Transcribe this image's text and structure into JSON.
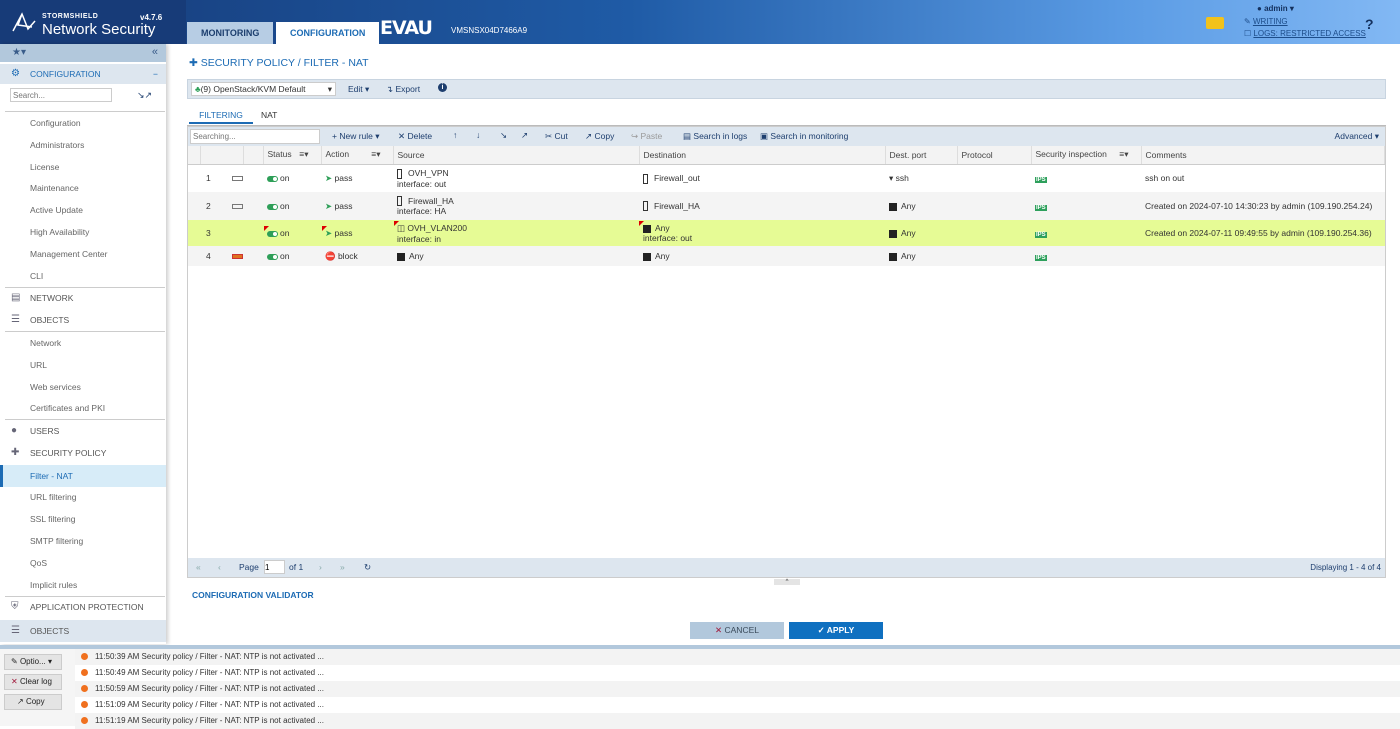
{
  "header": {
    "brand_small": "STORMSHIELD",
    "brand": "Network Security",
    "version": "v4.7.6",
    "tabs": [
      "MONITORING",
      "CONFIGURATION"
    ],
    "firewall_name": "EVAU",
    "serial": "VMSNSX04D7466A9",
    "user": "admin",
    "writing": "WRITING",
    "logs_access": "LOGS: RESTRICTED ACCESS",
    "help": "?"
  },
  "sidebar": {
    "config_title": "CONFIGURATION",
    "search_placeholder": "Search...",
    "config_items": [
      "Configuration",
      "Administrators",
      "License",
      "Maintenance",
      "Active Update",
      "High Availability",
      "Management Center",
      "CLI"
    ],
    "network": "NETWORK",
    "objects": "OBJECTS",
    "object_items": [
      "Network",
      "URL",
      "Web services",
      "Certificates and PKI"
    ],
    "users": "USERS",
    "security_policy": "SECURITY POLICY",
    "policy_items": [
      "Filter - NAT",
      "URL filtering",
      "SSL filtering",
      "SMTP filtering",
      "QoS",
      "Implicit rules"
    ],
    "app_protection": "APPLICATION PROTECTION",
    "objects_bottom": "OBJECTS"
  },
  "main": {
    "title": "SECURITY POLICY / FILTER - NAT",
    "policy_select": "(9) OpenStack/KVM Default",
    "edit": "Edit",
    "export": "Export",
    "tabs": [
      "FILTERING",
      "NAT"
    ],
    "toolbar": {
      "search_placeholder": "Searching...",
      "new_rule": "New rule",
      "delete": "Delete",
      "cut": "Cut",
      "copy": "Copy",
      "paste": "Paste",
      "search_logs": "Search in logs",
      "search_monitoring": "Search in monitoring",
      "advanced": "Advanced"
    },
    "columns": [
      "Status",
      "Action",
      "Source",
      "Destination",
      "Dest. port",
      "Protocol",
      "Security inspection",
      "Comments"
    ],
    "rows": [
      {
        "num": "1",
        "status": "on",
        "action": "pass",
        "source": "OVH_VPN",
        "source_if": "interface: out",
        "dest": "Firewall_out",
        "dest_if": "",
        "port": "ssh",
        "inspection": "IPS",
        "comment": "ssh on out"
      },
      {
        "num": "2",
        "status": "on",
        "action": "pass",
        "source": "Firewall_HA",
        "source_if": "interface: HA",
        "dest": "Firewall_HA",
        "dest_if": "",
        "port": "Any",
        "inspection": "IPS",
        "comment": "Created on 2024-07-10 14:30:23 by admin (109.190.254.24)"
      },
      {
        "num": "3",
        "status": "on",
        "action": "pass",
        "source": "OVH_VLAN200",
        "source_if": "interface: in",
        "dest": "Any",
        "dest_if": "interface: out",
        "port": "Any",
        "inspection": "IPS",
        "comment": "Created on 2024-07-11 09:49:55 by admin (109.190.254.36)"
      },
      {
        "num": "4",
        "status": "on",
        "action": "block",
        "source": "Any",
        "source_if": "",
        "dest": "Any",
        "dest_if": "",
        "port": "Any",
        "inspection": "IPS",
        "comment": ""
      }
    ],
    "pager": {
      "page_label": "Page",
      "page": "1",
      "of": "of 1",
      "displaying": "Displaying 1 - 4 of 4"
    },
    "validator": "CONFIGURATION VALIDATOR",
    "cancel": "CANCEL",
    "apply": "APPLY"
  },
  "log": {
    "options": "Optio...",
    "clear": "Clear log",
    "copy": "Copy",
    "entries": [
      "11:50:39 AM Security policy / Filter - NAT: NTP is not activated ...",
      "11:50:49 AM Security policy / Filter - NAT: NTP is not activated ...",
      "11:50:59 AM Security policy / Filter - NAT: NTP is not activated ...",
      "11:51:09 AM Security policy / Filter - NAT: NTP is not activated ...",
      "11:51:19 AM Security policy / Filter - NAT: NTP is not activated ..."
    ]
  },
  "colors": {
    "accent": "#1c6bb4",
    "selected_row": "#e6fb95",
    "header_dark": "#173b78",
    "ips": "#2ea05c",
    "log_dot": "#f0701e"
  }
}
